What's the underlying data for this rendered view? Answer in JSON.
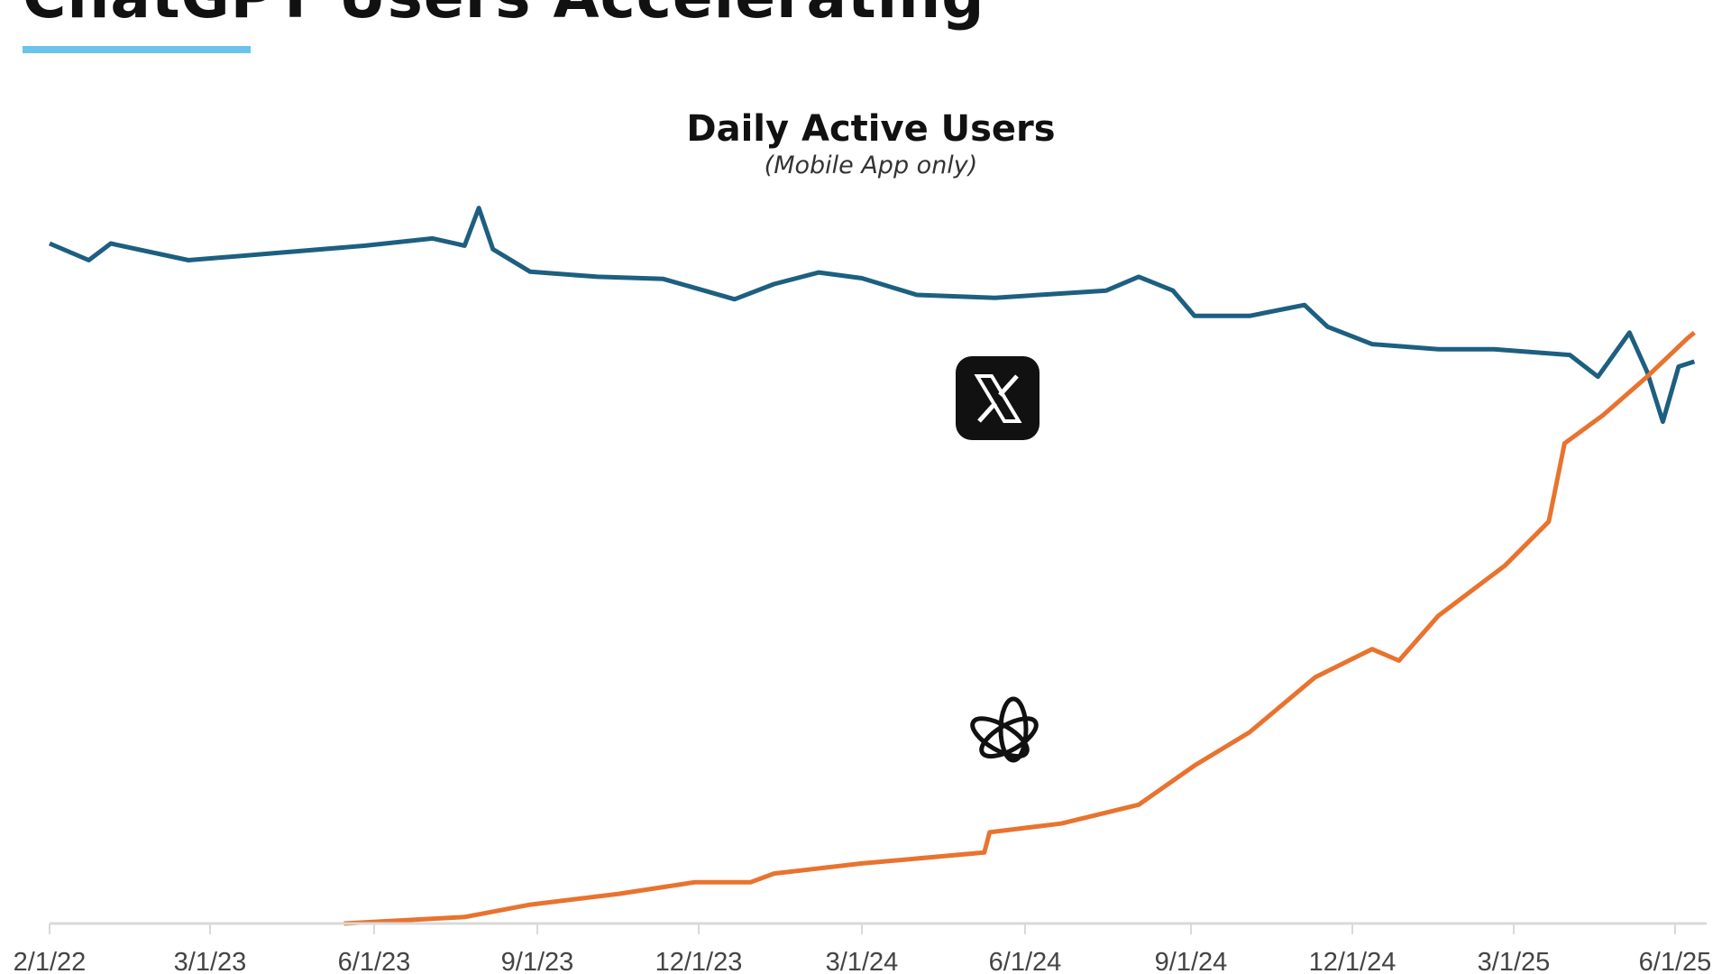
{
  "header": {
    "title": "ChatGPT Users Accelerating"
  },
  "colors": {
    "accent_underline": "#6cc3ea",
    "x_series": "#1d5f80",
    "chatgpt_series": "#e8732f",
    "axis": "#d9d9d9"
  },
  "chart_data": {
    "type": "line",
    "title": "Daily Active Users",
    "subtitle": "(Mobile App only)",
    "xlabel": "",
    "ylabel": "",
    "y_axis_shown": false,
    "grid": false,
    "legend": "none (series identified by logo icons)",
    "x_ticks": [
      "2/1/22",
      "3/1/23",
      "6/1/23",
      "9/1/23",
      "12/1/23",
      "3/1/24",
      "6/1/24",
      "9/1/24",
      "12/1/24",
      "3/1/25",
      "6/1/25"
    ],
    "x_tick_dates": [
      "2022-02-01",
      "2023-03-01",
      "2023-06-01",
      "2023-09-01",
      "2023-12-01",
      "2024-03-01",
      "2024-06-01",
      "2024-09-01",
      "2024-12-01",
      "2025-03-01",
      "2025-06-01"
    ],
    "ylim": [
      0,
      100
    ],
    "y_units": "relative index (no printed scale)",
    "series": [
      {
        "icon": "x-logo-icon",
        "color": "#1d5f80",
        "x": [
          "2022-02-01",
          "2022-05-08",
          "2022-07-01",
          "2023-01-07",
          "2023-04-08",
          "2023-05-27",
          "2023-07-04",
          "2023-07-22",
          "2023-07-30",
          "2023-08-07",
          "2023-08-28",
          "2023-10-05",
          "2023-11-11",
          "2023-12-21",
          "2024-01-12",
          "2024-02-06",
          "2024-03-01",
          "2024-04-01",
          "2024-05-15",
          "2024-07-16",
          "2024-08-03",
          "2024-08-22",
          "2024-09-03",
          "2024-10-04",
          "2024-11-04",
          "2024-11-17",
          "2024-12-12",
          "2025-01-18",
          "2025-02-18",
          "2025-04-02",
          "2025-04-18",
          "2025-05-06",
          "2025-05-16",
          "2025-05-25",
          "2025-06-03",
          "2025-06-12"
        ],
        "y": [
          93.9,
          91.6,
          93.9,
          91.6,
          92.6,
          93.6,
          94.6,
          93.6,
          98.8,
          93.1,
          90.0,
          89.3,
          89.0,
          86.2,
          88.3,
          89.9,
          89.1,
          86.8,
          86.4,
          87.4,
          89.3,
          87.4,
          83.9,
          83.9,
          85.4,
          82.4,
          80.0,
          79.3,
          79.3,
          78.5,
          75.5,
          81.6,
          76.2,
          69.3,
          76.9,
          77.6
        ]
      },
      {
        "icon": "openai-logo-icon",
        "color": "#e8732f",
        "x": [
          "2023-05-15",
          "2023-07-22",
          "2023-08-28",
          "2023-10-17",
          "2023-11-29",
          "2023-12-30",
          "2024-01-12",
          "2024-03-01",
          "2024-05-09",
          "2024-05-12",
          "2024-06-21",
          "2024-08-03",
          "2024-09-03",
          "2024-10-04",
          "2024-11-10",
          "2024-12-12",
          "2024-12-27",
          "2025-01-18",
          "2025-02-24",
          "2025-03-21",
          "2025-03-30",
          "2025-04-21",
          "2025-05-16",
          "2025-06-08",
          "2025-06-12"
        ],
        "y": [
          0,
          0.9,
          2.6,
          4.1,
          5.7,
          5.7,
          6.9,
          8.3,
          9.8,
          12.6,
          13.8,
          16.4,
          21.8,
          26.4,
          34.0,
          37.9,
          36.3,
          42.5,
          49.4,
          55.5,
          66.3,
          70.2,
          75.5,
          80.8,
          81.6
        ]
      }
    ]
  }
}
